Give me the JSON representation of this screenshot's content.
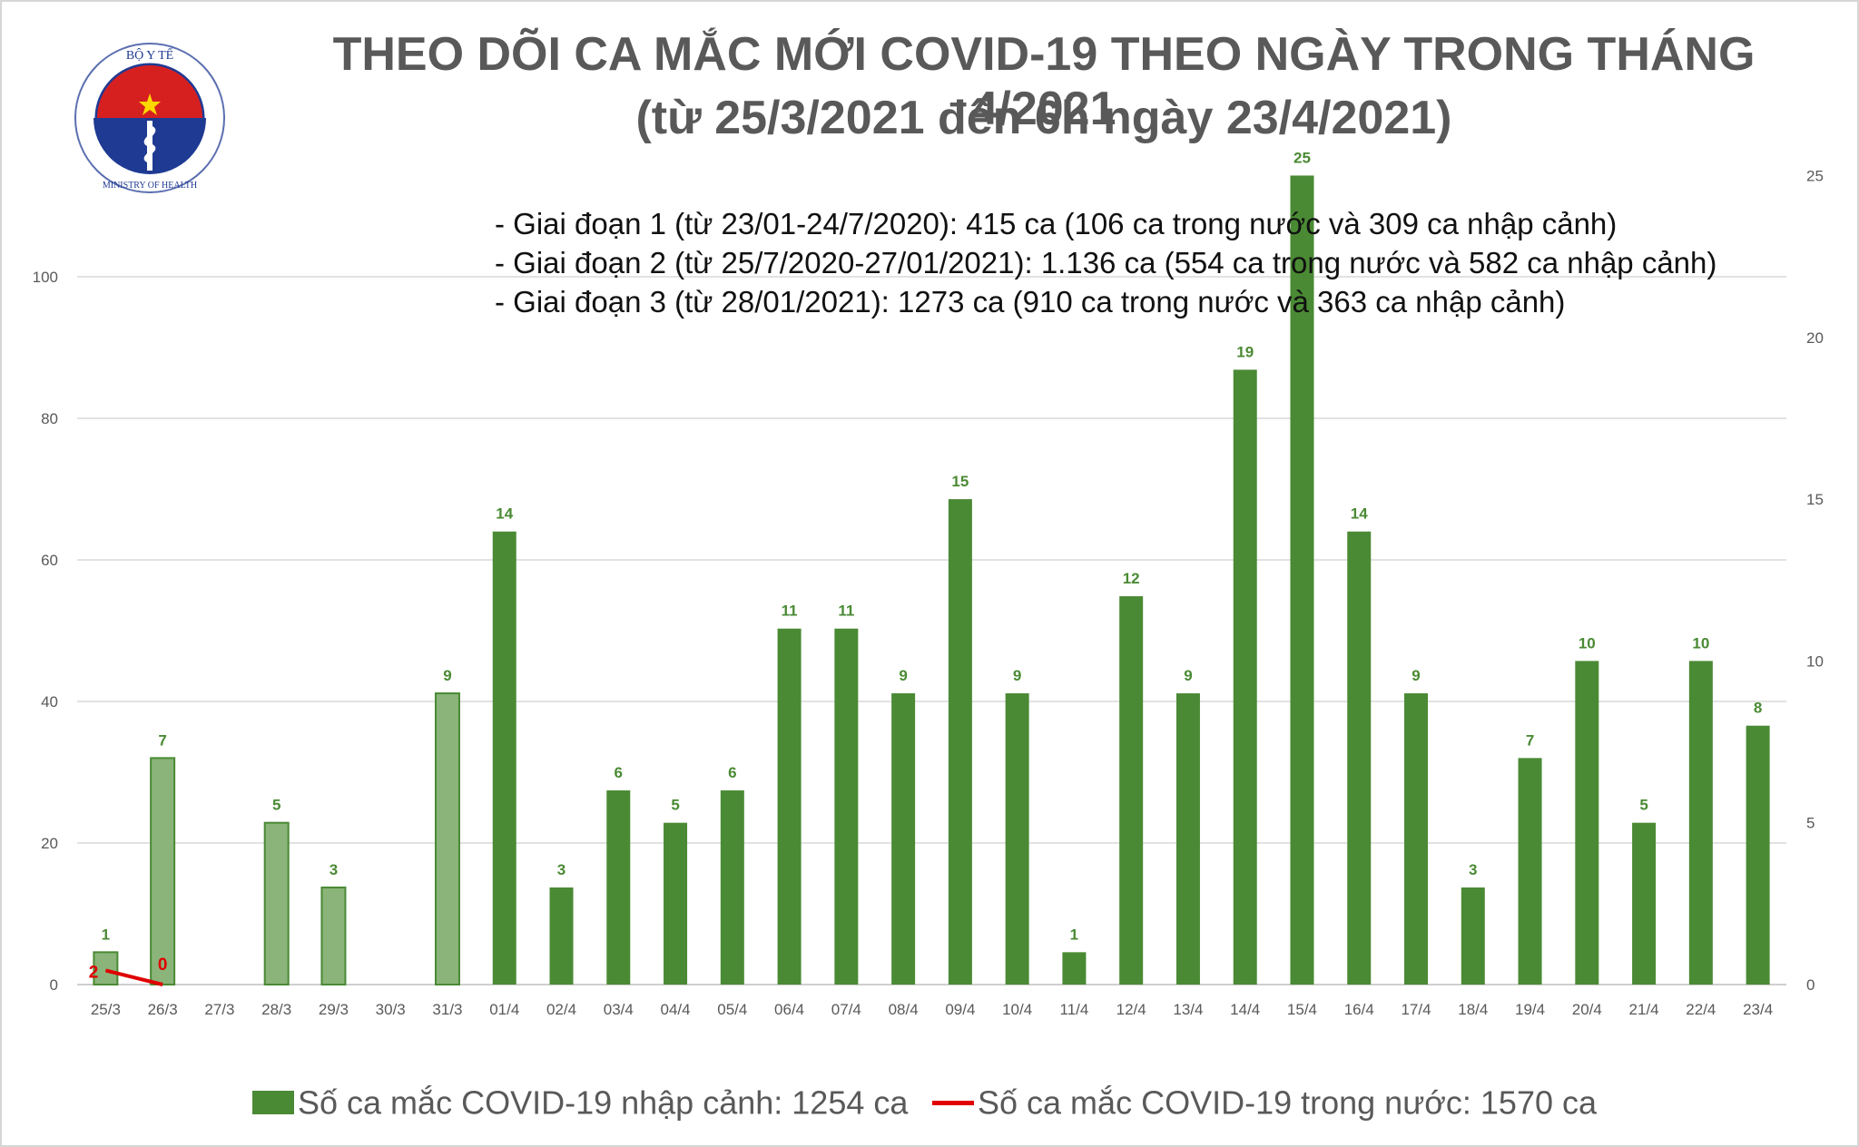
{
  "title": {
    "line1": "THEO DÕI CA MẮC MỚI COVID-19 THEO NGÀY TRONG THÁNG 4/2021",
    "line2": "(từ 25/3/2021 đến 6h ngày 23/4/2021)"
  },
  "logo": {
    "top_text": "BỘ Y TẾ",
    "bottom_text": "MINISTRY OF HEALTH",
    "icon": "ministry-of-health-emblem"
  },
  "stages": [
    "- Giai đoạn 1 (từ 23/01-24/7/2020): 415 ca (106 ca trong nước và 309 ca nhập cảnh)",
    "- Giai đoạn 2 (từ 25/7/2020-27/01/2021): 1.136 ca (554 ca trong nước và 582 ca nhập cảnh)",
    "- Giai đoạn 3 (từ 28/01/2021): 1273 ca (910 ca trong nước và 363 ca nhập cảnh)"
  ],
  "legend": {
    "import": "Số ca mắc COVID-19 nhập cảnh: 1254 ca",
    "domestic": "Số ca mắc COVID-19 trong nước: 1570 ca"
  },
  "colors": {
    "bar": "#4a8a34",
    "bar_light": "#8ab47a",
    "line": "#e00000",
    "grid": "#d9d9d9",
    "label": "#4a8a34"
  },
  "chart_data": {
    "type": "bar",
    "categories": [
      "25/3",
      "26/3",
      "27/3",
      "28/3",
      "29/3",
      "30/3",
      "31/3",
      "01/4",
      "02/4",
      "03/4",
      "04/4",
      "05/4",
      "06/4",
      "07/4",
      "08/4",
      "09/4",
      "10/4",
      "11/4",
      "12/4",
      "13/4",
      "14/4",
      "15/4",
      "16/4",
      "17/4",
      "18/4",
      "19/4",
      "20/4",
      "21/4",
      "22/4",
      "23/4"
    ],
    "series": [
      {
        "name": "Số ca mắc COVID-19 nhập cảnh: 1254 ca",
        "type": "bar",
        "axis": "right",
        "values": [
          1,
          7,
          null,
          5,
          3,
          null,
          9,
          14,
          3,
          6,
          5,
          6,
          11,
          11,
          9,
          15,
          9,
          1,
          12,
          9,
          19,
          25,
          14,
          9,
          3,
          7,
          10,
          5,
          10,
          8
        ],
        "light_until_index": 6
      },
      {
        "name": "Số ca mắc COVID-19 trong nước: 1570 ca",
        "type": "line",
        "axis": "left",
        "x": [
          "25/3",
          "26/3"
        ],
        "values": [
          2,
          0
        ]
      }
    ],
    "y_left": {
      "ylim": [
        0,
        100
      ],
      "ticks": [
        0,
        20,
        40,
        60,
        80,
        100
      ]
    },
    "y_right": {
      "ylim": [
        0,
        25
      ],
      "ticks": [
        0,
        5,
        10,
        15,
        20,
        25
      ]
    },
    "grid": true,
    "legend_position": "bottom"
  }
}
